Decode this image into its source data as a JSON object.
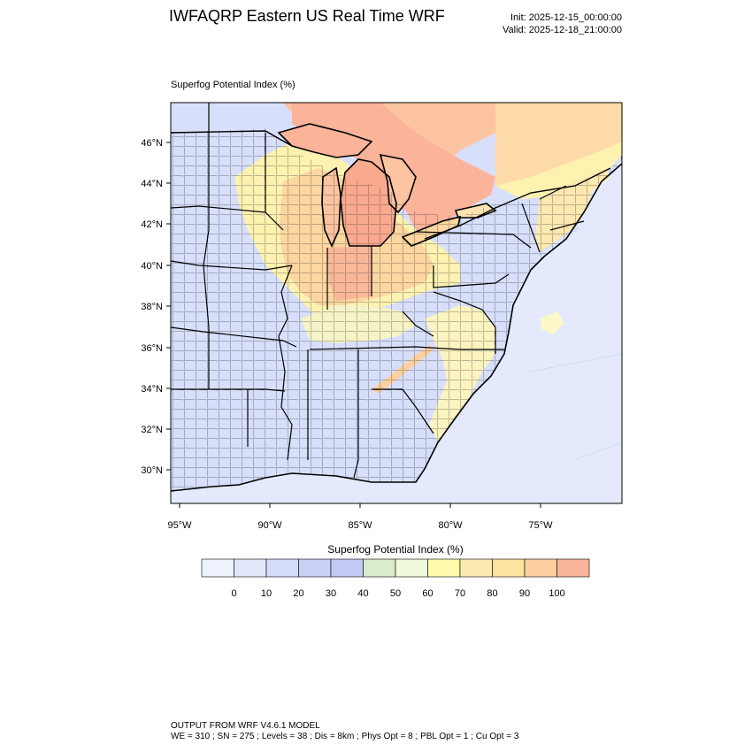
{
  "header": {
    "title": "IWFAQRP Eastern US Real Time WRF",
    "init": "Init: 2025-12-15_00:00:00",
    "valid": "Valid: 2025-12-18_21:00:00"
  },
  "map": {
    "subtitle": "Superfog Potential Index   (%)",
    "lat_labels": [
      "46°N",
      "44°N",
      "42°N",
      "40°N",
      "38°N",
      "36°N",
      "34°N",
      "32°N",
      "30°N"
    ],
    "lon_labels": [
      "95°W",
      "90°W",
      "85°W",
      "80°W",
      "75°W"
    ],
    "background_color": "#e4eafc",
    "colors": {
      "ocean": "#e4eafc",
      "land_low": "#d9e2fb",
      "land_mid": "#c9d4f7",
      "lake_high": "#fbb89c",
      "mi_red": "#f9a585",
      "orange": "#fcd29b",
      "yellow": "#fdf2a5",
      "pale_yellow": "#fbf8c8",
      "green_tint": "#dbeccb"
    }
  },
  "colorbar": {
    "title": "Superfog Potential Index  (%)",
    "tick_labels": [
      "0",
      "10",
      "20",
      "30",
      "40",
      "50",
      "60",
      "70",
      "80",
      "90",
      "100"
    ],
    "colors": [
      "#eef2fd",
      "#e1e8fb",
      "#d4dcf8",
      "#c9d0f5",
      "#c4c9f3",
      "#dbeccb",
      "#f0f9dc",
      "#fdfbab",
      "#fcebb0",
      "#fde3a0",
      "#fdd0a0",
      "#fbb59a"
    ]
  },
  "footer": {
    "line1": "OUTPUT FROM WRF V4.6.1 MODEL",
    "line2": "WE = 310 ; SN = 275 ; Levels = 38 ; Dis = 8km ; Phys Opt = 8 ; PBL Opt = 1 ; Cu Opt = 3"
  }
}
